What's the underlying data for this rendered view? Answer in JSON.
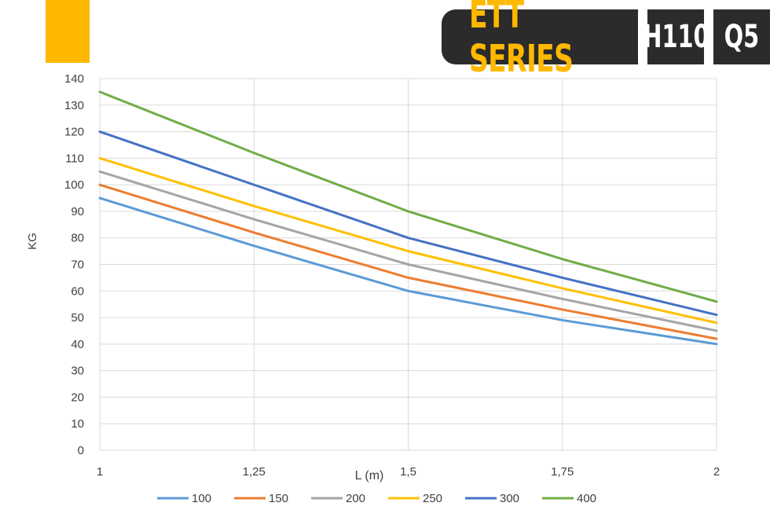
{
  "header": {
    "series_label": "ETT SERIES",
    "badge_model": "H110",
    "badge_variant": "Q5"
  },
  "colors": {
    "accent": "#ffb800",
    "badge_bg": "#2b2b2b"
  },
  "chart_data": {
    "type": "line",
    "title": "",
    "xlabel": "L (m)",
    "ylabel": "KG",
    "x": [
      1,
      1.25,
      1.5,
      1.75,
      2
    ],
    "x_tick_labels": [
      "1",
      "1,25",
      "1,5",
      "1,75",
      "2"
    ],
    "ylim": [
      0,
      140
    ],
    "y_ticks": [
      0,
      10,
      20,
      30,
      40,
      50,
      60,
      70,
      80,
      90,
      100,
      110,
      120,
      130,
      140
    ],
    "grid": true,
    "legend_position": "bottom",
    "series": [
      {
        "name": "100",
        "color": "#5b9bd5",
        "values": [
          95,
          77,
          60,
          49,
          40
        ]
      },
      {
        "name": "150",
        "color": "#ed7d31",
        "values": [
          100,
          82,
          65,
          53,
          42
        ]
      },
      {
        "name": "200",
        "color": "#a5a5a5",
        "values": [
          105,
          87,
          70,
          57,
          45
        ]
      },
      {
        "name": "250",
        "color": "#ffc000",
        "values": [
          110,
          92,
          75,
          61,
          48
        ]
      },
      {
        "name": "300",
        "color": "#4472c4",
        "values": [
          120,
          100,
          80,
          65,
          51
        ]
      },
      {
        "name": "400",
        "color": "#70ad47",
        "values": [
          135,
          112,
          90,
          72,
          56
        ]
      }
    ]
  }
}
